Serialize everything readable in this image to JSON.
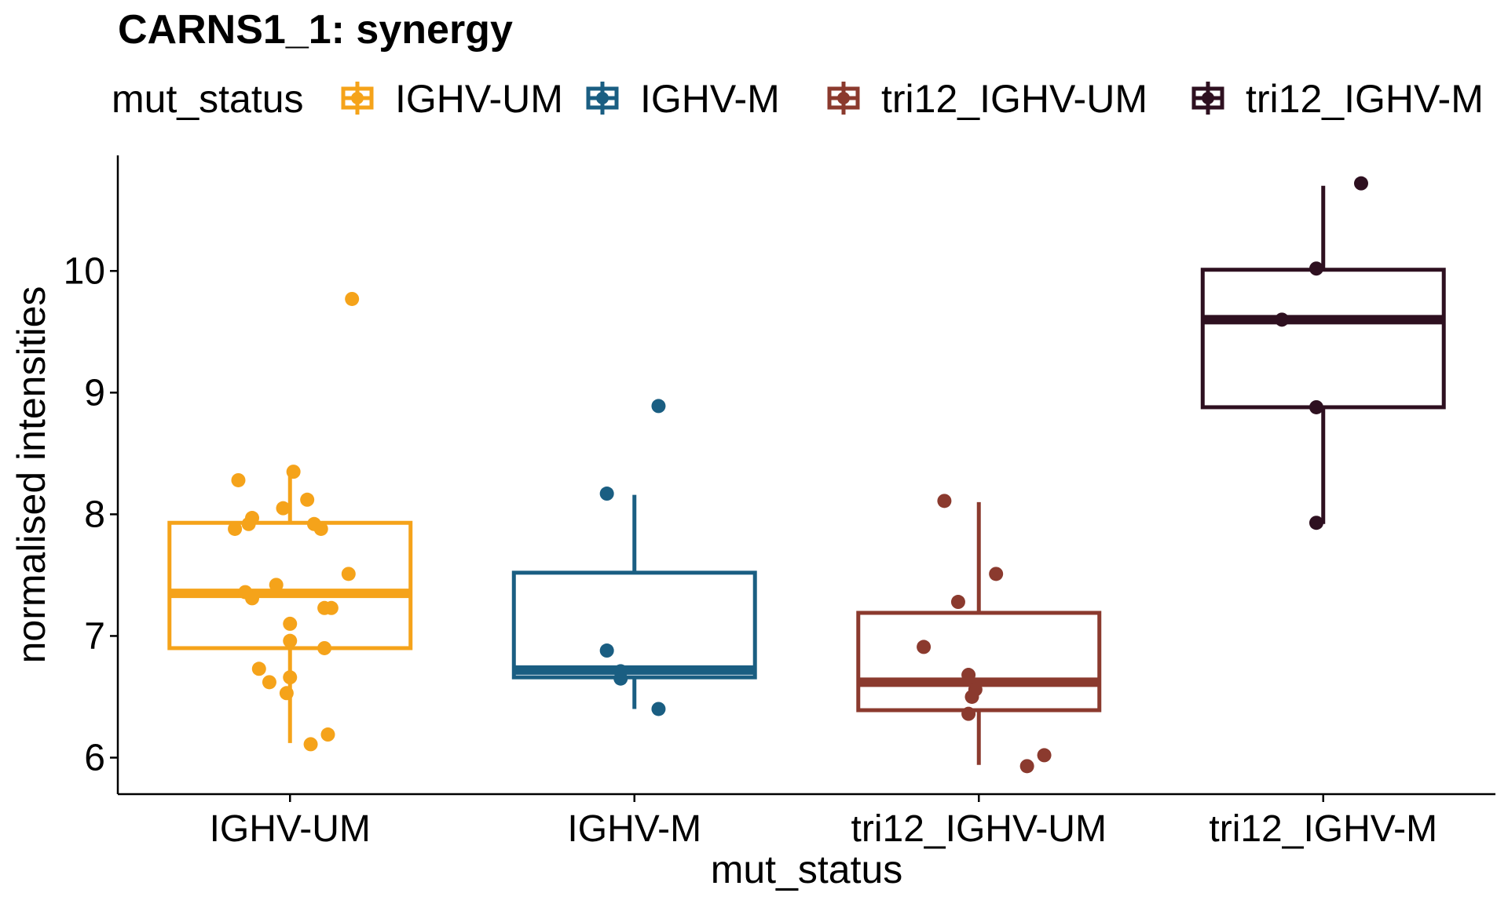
{
  "chart_data": {
    "type": "box",
    "title": "CARNS1_1: synergy",
    "xlabel": "mut_status",
    "ylabel": "normalised intensities",
    "ylim": [
      5.7,
      10.95
    ],
    "yticks": [
      6,
      7,
      8,
      9,
      10
    ],
    "legend": {
      "title": "mut_status",
      "placement": "top"
    },
    "categories": [
      "IGHV-UM",
      "IGHV-M",
      "tri12_IGHV-UM",
      "tri12_IGHV-M"
    ],
    "series": [
      {
        "name": "IGHV-UM",
        "color": "#F5A31A",
        "box": {
          "whisker_low": 6.12,
          "q1": 6.9,
          "median": 7.35,
          "q3": 7.93,
          "whisker_high": 8.35
        },
        "points": [
          {
            "x": -0.15,
            "y": 8.28
          },
          {
            "x": -0.11,
            "y": 7.97
          },
          {
            "x": -0.12,
            "y": 7.92
          },
          {
            "x": -0.16,
            "y": 7.88
          },
          {
            "x": -0.11,
            "y": 7.31
          },
          {
            "x": -0.13,
            "y": 7.36
          },
          {
            "x": -0.09,
            "y": 6.73
          },
          {
            "x": -0.06,
            "y": 6.62
          },
          {
            "x": -0.04,
            "y": 7.42
          },
          {
            "x": -0.02,
            "y": 8.05
          },
          {
            "x": 0.01,
            "y": 8.35
          },
          {
            "x": 0.0,
            "y": 7.1
          },
          {
            "x": 0.0,
            "y": 6.96
          },
          {
            "x": 0.0,
            "y": 6.66
          },
          {
            "x": -0.01,
            "y": 6.53
          },
          {
            "x": 0.05,
            "y": 8.12
          },
          {
            "x": 0.07,
            "y": 7.92
          },
          {
            "x": 0.09,
            "y": 7.88
          },
          {
            "x": 0.1,
            "y": 7.23
          },
          {
            "x": 0.12,
            "y": 7.23
          },
          {
            "x": 0.17,
            "y": 7.51
          },
          {
            "x": 0.1,
            "y": 6.9
          },
          {
            "x": 0.06,
            "y": 6.11
          },
          {
            "x": 0.11,
            "y": 6.19
          },
          {
            "x": 0.18,
            "y": 9.77
          }
        ]
      },
      {
        "name": "IGHV-M",
        "color": "#1A5E82",
        "box": {
          "whisker_low": 6.4,
          "q1": 6.66,
          "median": 6.72,
          "q3": 7.52,
          "whisker_high": 8.16
        },
        "points": [
          {
            "x": -0.08,
            "y": 8.17
          },
          {
            "x": -0.08,
            "y": 6.88
          },
          {
            "x": -0.04,
            "y": 6.71
          },
          {
            "x": -0.04,
            "y": 6.65
          },
          {
            "x": 0.07,
            "y": 6.4
          },
          {
            "x": 0.07,
            "y": 8.89
          }
        ]
      },
      {
        "name": "tri12_IGHV-UM",
        "color": "#8B3A2E",
        "box": {
          "whisker_low": 5.94,
          "q1": 6.39,
          "median": 6.62,
          "q3": 7.19,
          "whisker_high": 8.1
        },
        "points": [
          {
            "x": -0.1,
            "y": 8.11
          },
          {
            "x": -0.06,
            "y": 7.28
          },
          {
            "x": 0.05,
            "y": 7.51
          },
          {
            "x": -0.16,
            "y": 6.91
          },
          {
            "x": -0.03,
            "y": 6.68
          },
          {
            "x": -0.01,
            "y": 6.56
          },
          {
            "x": -0.02,
            "y": 6.5
          },
          {
            "x": -0.03,
            "y": 6.36
          },
          {
            "x": 0.14,
            "y": 5.93
          },
          {
            "x": 0.19,
            "y": 6.02
          }
        ]
      },
      {
        "name": "tri12_IGHV-M",
        "color": "#2E1020",
        "box": {
          "whisker_low": 7.92,
          "q1": 8.88,
          "median": 9.6,
          "q3": 10.01,
          "whisker_high": 10.7
        },
        "points": [
          {
            "x": 0.11,
            "y": 10.72
          },
          {
            "x": -0.02,
            "y": 10.02
          },
          {
            "x": -0.12,
            "y": 9.6
          },
          {
            "x": -0.02,
            "y": 8.88
          },
          {
            "x": -0.02,
            "y": 7.93
          }
        ]
      }
    ]
  }
}
